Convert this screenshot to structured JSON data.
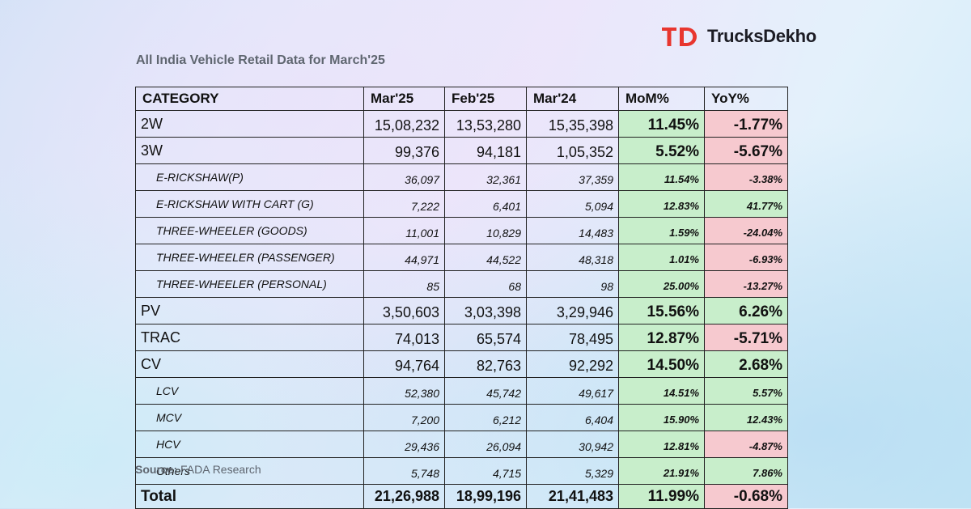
{
  "brand": {
    "name": "TrucksDekho",
    "accent": "#e8362f"
  },
  "title": "All India Vehicle Retail Data for March'25",
  "colors": {
    "positive_bg": "#c8eecb",
    "positive_text": "#0d6f1d",
    "negative_bg": "#f6c9cf",
    "negative_text": "#a10d18"
  },
  "table": {
    "headers": [
      "CATEGORY",
      "Mar'25",
      "Feb'25",
      "Mar'24",
      "MoM%",
      "YoY%"
    ],
    "rows": [
      {
        "category": "2W",
        "mar25": "15,08,232",
        "feb25": "13,53,280",
        "mar24": "15,35,398",
        "mom": "11.45%",
        "yoy": "-1.77%"
      },
      {
        "category": "3W",
        "mar25": "99,376",
        "feb25": "94,181",
        "mar24": "1,05,352",
        "mom": "5.52%",
        "yoy": "-5.67%"
      },
      {
        "category": "E-RICKSHAW(P)",
        "mar25": "36,097",
        "feb25": "32,361",
        "mar24": "37,359",
        "mom": "11.54%",
        "yoy": "-3.38%"
      },
      {
        "category": "E-RICKSHAW WITH CART (G)",
        "mar25": "7,222",
        "feb25": "6,401",
        "mar24": "5,094",
        "mom": "12.83%",
        "yoy": "41.77%"
      },
      {
        "category": "THREE-WHEELER (GOODS)",
        "mar25": "11,001",
        "feb25": "10,829",
        "mar24": "14,483",
        "mom": "1.59%",
        "yoy": "-24.04%"
      },
      {
        "category": "THREE-WHEELER (PASSENGER)",
        "mar25": "44,971",
        "feb25": "44,522",
        "mar24": "48,318",
        "mom": "1.01%",
        "yoy": "-6.93%"
      },
      {
        "category": "THREE-WHEELER (PERSONAL)",
        "mar25": "85",
        "feb25": "68",
        "mar24": "98",
        "mom": "25.00%",
        "yoy": "-13.27%"
      },
      {
        "category": "PV",
        "mar25": "3,50,603",
        "feb25": "3,03,398",
        "mar24": "3,29,946",
        "mom": "15.56%",
        "yoy": "6.26%"
      },
      {
        "category": "TRAC",
        "mar25": "74,013",
        "feb25": "65,574",
        "mar24": "78,495",
        "mom": "12.87%",
        "yoy": "-5.71%"
      },
      {
        "category": "CV",
        "mar25": "94,764",
        "feb25": "82,763",
        "mar24": "92,292",
        "mom": "14.50%",
        "yoy": "2.68%"
      },
      {
        "category": "LCV",
        "mar25": "52,380",
        "feb25": "45,742",
        "mar24": "49,617",
        "mom": "14.51%",
        "yoy": "5.57%"
      },
      {
        "category": "MCV",
        "mar25": "7,200",
        "feb25": "6,212",
        "mar24": "6,404",
        "mom": "15.90%",
        "yoy": "12.43%"
      },
      {
        "category": "HCV",
        "mar25": "29,436",
        "feb25": "26,094",
        "mar24": "30,942",
        "mom": "12.81%",
        "yoy": "-4.87%"
      },
      {
        "category": "Others",
        "mar25": "5,748",
        "feb25": "4,715",
        "mar24": "5,329",
        "mom": "21.91%",
        "yoy": "7.86%"
      }
    ],
    "total": {
      "category": "Total",
      "mar25": "21,26,988",
      "feb25": "18,99,196",
      "mar24": "21,41,483",
      "mom": "11.99%",
      "yoy": "-0.68%"
    }
  },
  "source": {
    "label": "Source:",
    "text": "FADA Research"
  }
}
